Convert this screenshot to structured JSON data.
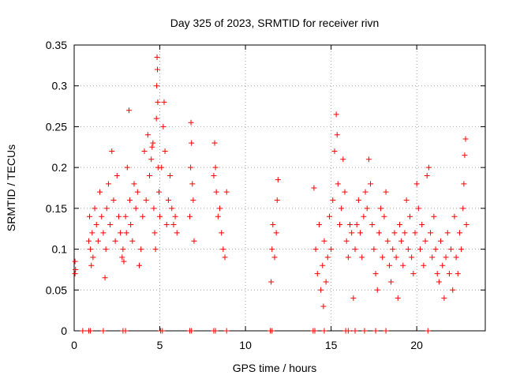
{
  "chart_data": {
    "type": "scatter",
    "title": "Day 325 of 2023, SRMTID for receiver rivn",
    "xlabel": "GPS time / hours",
    "ylabel": "SRMTID / TECUs",
    "xlim": [
      0,
      24
    ],
    "ylim": [
      0,
      0.35
    ],
    "xticks": [
      0,
      5,
      10,
      15,
      20
    ],
    "xtick_labels": [
      "0",
      "5",
      "10",
      "15",
      "20"
    ],
    "yticks": [
      0,
      0.05,
      0.1,
      0.15,
      0.2,
      0.25,
      0.3,
      0.35
    ],
    "ytick_labels": [
      "0",
      "0.05",
      "0.1",
      "0.15",
      "0.2",
      "0.25",
      "0.3",
      "0.35"
    ],
    "grid": true,
    "marker": "+",
    "series": [
      {
        "name": "SRMTID",
        "color": "#ff0000",
        "points": [
          [
            0.05,
            0.085
          ],
          [
            0.05,
            0.07
          ],
          [
            0.08,
            0.075
          ],
          [
            0.85,
            0.11
          ],
          [
            0.9,
            0.14
          ],
          [
            0.95,
            0.1
          ],
          [
            1.0,
            0.08
          ],
          [
            1.05,
            0.12
          ],
          [
            1.1,
            0.09
          ],
          [
            1.2,
            0.15
          ],
          [
            1.3,
            0.13
          ],
          [
            1.4,
            0.11
          ],
          [
            1.5,
            0.17
          ],
          [
            1.6,
            0.14
          ],
          [
            1.7,
            0.12
          ],
          [
            1.8,
            0.065
          ],
          [
            1.85,
            0.1
          ],
          [
            1.9,
            0.15
          ],
          [
            2.0,
            0.18
          ],
          [
            2.1,
            0.13
          ],
          [
            2.2,
            0.22
          ],
          [
            2.3,
            0.16
          ],
          [
            2.4,
            0.11
          ],
          [
            2.5,
            0.19
          ],
          [
            2.6,
            0.14
          ],
          [
            2.7,
            0.12
          ],
          [
            2.8,
            0.09
          ],
          [
            2.85,
            0.1
          ],
          [
            2.9,
            0.085
          ],
          [
            3.0,
            0.14
          ],
          [
            3.05,
            0.12
          ],
          [
            3.1,
            0.2
          ],
          [
            3.2,
            0.27
          ],
          [
            3.25,
            0.16
          ],
          [
            3.3,
            0.13
          ],
          [
            3.4,
            0.11
          ],
          [
            3.5,
            0.18
          ],
          [
            3.6,
            0.15
          ],
          [
            3.7,
            0.17
          ],
          [
            3.8,
            0.08
          ],
          [
            3.9,
            0.1
          ],
          [
            4.0,
            0.14
          ],
          [
            4.1,
            0.22
          ],
          [
            4.2,
            0.16
          ],
          [
            4.3,
            0.24
          ],
          [
            4.4,
            0.19
          ],
          [
            4.5,
            0.21
          ],
          [
            4.55,
            0.225
          ],
          [
            4.6,
            0.23
          ],
          [
            4.65,
            0.15
          ],
          [
            4.7,
            0.12
          ],
          [
            4.75,
            0.1
          ],
          [
            4.8,
            0.26
          ],
          [
            4.82,
            0.3
          ],
          [
            4.84,
            0.335
          ],
          [
            4.86,
            0.32
          ],
          [
            4.88,
            0.28
          ],
          [
            4.9,
            0.2
          ],
          [
            4.95,
            0.17
          ],
          [
            5.0,
            0.14
          ],
          [
            5.1,
            0.2
          ],
          [
            5.2,
            0.25
          ],
          [
            5.25,
            0.28
          ],
          [
            5.3,
            0.22
          ],
          [
            5.4,
            0.13
          ],
          [
            5.5,
            0.16
          ],
          [
            5.6,
            0.19
          ],
          [
            5.7,
            0.15
          ],
          [
            5.8,
            0.13
          ],
          [
            5.9,
            0.14
          ],
          [
            6.0,
            0.12
          ],
          [
            6.75,
            0.14
          ],
          [
            6.8,
            0.2
          ],
          [
            6.82,
            0.255
          ],
          [
            6.85,
            0.23
          ],
          [
            6.9,
            0.18
          ],
          [
            6.95,
            0.16
          ],
          [
            7.0,
            0.11
          ],
          [
            8.15,
            0.19
          ],
          [
            8.2,
            0.23
          ],
          [
            8.25,
            0.2
          ],
          [
            8.3,
            0.17
          ],
          [
            8.4,
            0.14
          ],
          [
            8.5,
            0.15
          ],
          [
            8.6,
            0.12
          ],
          [
            8.7,
            0.1
          ],
          [
            8.8,
            0.09
          ],
          [
            8.9,
            0.17
          ],
          [
            11.5,
            0.06
          ],
          [
            11.55,
            0.1
          ],
          [
            11.6,
            0.13
          ],
          [
            11.7,
            0.09
          ],
          [
            11.8,
            0.12
          ],
          [
            11.85,
            0.16
          ],
          [
            11.9,
            0.185
          ],
          [
            14.0,
            0.175
          ],
          [
            14.1,
            0.1
          ],
          [
            14.2,
            0.07
          ],
          [
            14.3,
            0.13
          ],
          [
            14.4,
            0.05
          ],
          [
            14.5,
            0.08
          ],
          [
            14.55,
            0.03
          ],
          [
            14.6,
            0.11
          ],
          [
            14.7,
            0.06
          ],
          [
            14.8,
            0.09
          ],
          [
            14.9,
            0.14
          ],
          [
            15.0,
            0.1
          ],
          [
            15.1,
            0.16
          ],
          [
            15.2,
            0.22
          ],
          [
            15.3,
            0.265
          ],
          [
            15.35,
            0.24
          ],
          [
            15.4,
            0.18
          ],
          [
            15.5,
            0.13
          ],
          [
            15.6,
            0.15
          ],
          [
            15.7,
            0.21
          ],
          [
            15.8,
            0.17
          ],
          [
            15.9,
            0.11
          ],
          [
            16.0,
            0.09
          ],
          [
            16.1,
            0.13
          ],
          [
            16.2,
            0.12
          ],
          [
            16.3,
            0.04
          ],
          [
            16.4,
            0.1
          ],
          [
            16.5,
            0.13
          ],
          [
            16.6,
            0.16
          ],
          [
            16.7,
            0.12
          ],
          [
            16.8,
            0.09
          ],
          [
            16.9,
            0.14
          ],
          [
            17.0,
            0.17
          ],
          [
            17.1,
            0.15
          ],
          [
            17.2,
            0.21
          ],
          [
            17.3,
            0.18
          ],
          [
            17.4,
            0.13
          ],
          [
            17.5,
            0.1
          ],
          [
            17.6,
            0.07
          ],
          [
            17.7,
            0.05
          ],
          [
            17.8,
            0.12
          ],
          [
            17.9,
            0.15
          ],
          [
            18.0,
            0.09
          ],
          [
            18.1,
            0.14
          ],
          [
            18.2,
            0.17
          ],
          [
            18.3,
            0.11
          ],
          [
            18.4,
            0.08
          ],
          [
            18.5,
            0.06
          ],
          [
            18.6,
            0.1
          ],
          [
            18.7,
            0.12
          ],
          [
            18.8,
            0.09
          ],
          [
            18.9,
            0.04
          ],
          [
            19.0,
            0.13
          ],
          [
            19.1,
            0.11
          ],
          [
            19.2,
            0.08
          ],
          [
            19.3,
            0.12
          ],
          [
            19.4,
            0.16
          ],
          [
            19.5,
            0.1
          ],
          [
            19.6,
            0.14
          ],
          [
            19.7,
            0.09
          ],
          [
            19.8,
            0.07
          ],
          [
            19.9,
            0.12
          ],
          [
            20.0,
            0.18
          ],
          [
            20.1,
            0.15
          ],
          [
            20.2,
            0.1
          ],
          [
            20.3,
            0.13
          ],
          [
            20.4,
            0.08
          ],
          [
            20.5,
            0.11
          ],
          [
            20.6,
            0.19
          ],
          [
            20.7,
            0.2
          ],
          [
            20.8,
            0.12
          ],
          [
            20.9,
            0.09
          ],
          [
            21.0,
            0.14
          ],
          [
            21.1,
            0.1
          ],
          [
            21.2,
            0.07
          ],
          [
            21.3,
            0.06
          ],
          [
            21.4,
            0.11
          ],
          [
            21.5,
            0.08
          ],
          [
            21.6,
            0.04
          ],
          [
            21.7,
            0.09
          ],
          [
            21.8,
            0.12
          ],
          [
            21.9,
            0.07
          ],
          [
            22.0,
            0.1
          ],
          [
            22.1,
            0.05
          ],
          [
            22.2,
            0.14
          ],
          [
            22.3,
            0.09
          ],
          [
            22.4,
            0.07
          ],
          [
            22.5,
            0.12
          ],
          [
            22.6,
            0.1
          ],
          [
            22.7,
            0.15
          ],
          [
            22.75,
            0.18
          ],
          [
            22.8,
            0.215
          ],
          [
            22.85,
            0.235
          ],
          [
            22.9,
            0.13
          ]
        ]
      }
    ],
    "zero_points_x": [
      0.5,
      0.85,
      0.95,
      1.7,
      2.85,
      3.0,
      5.05,
      5.15,
      6.75,
      6.85,
      8.15,
      8.25,
      8.9,
      11.45,
      11.55,
      13.95,
      14.05,
      14.6,
      15.85,
      16.0,
      16.4,
      16.95,
      17.6,
      18.2,
      20.65
    ]
  }
}
